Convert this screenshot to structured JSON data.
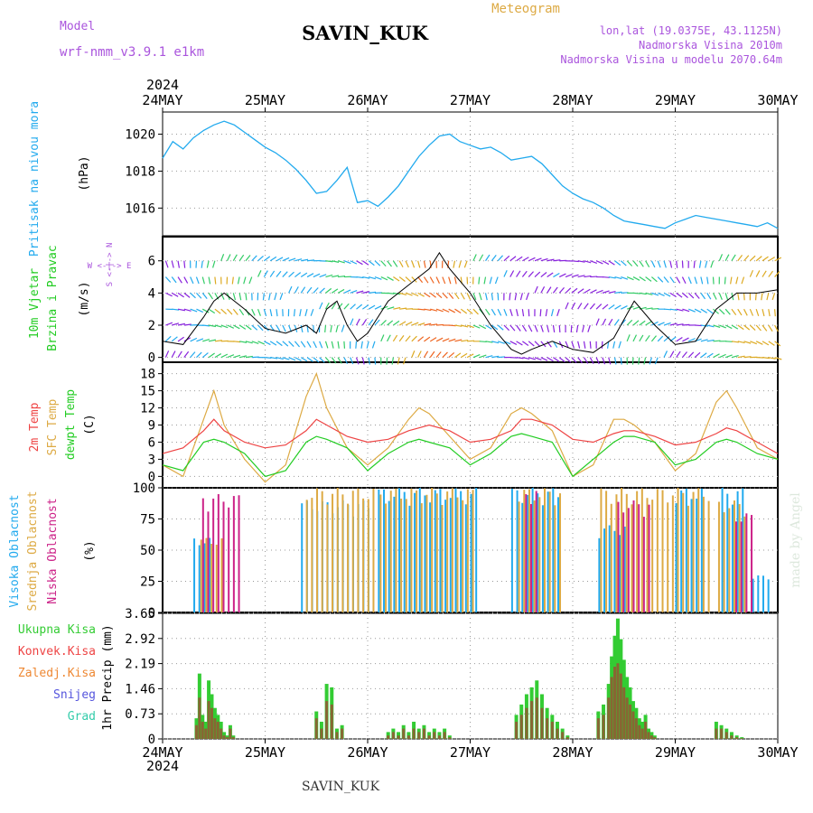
{
  "header": {
    "model_label": "Model",
    "model_name": "wrf-nmm_v3.9.1 e1km",
    "station": "SAVIN_KUK",
    "meteogram": "Meteogram",
    "lonlat": "lon,lat (19.0375E, 43.1125N)",
    "altitude": "Nadmorska Visina 2010m",
    "model_altitude": "Nadmorska Visina u modelu 2070.64m"
  },
  "footer": {
    "station": "SAVIN_KUK",
    "made_by": "made by Angel"
  },
  "time_axis": {
    "year": "2024",
    "days": [
      "24MAY",
      "25MAY",
      "26MAY",
      "27MAY",
      "28MAY",
      "29MAY",
      "30MAY"
    ]
  },
  "colors": {
    "pressure": "#22aaee",
    "temp2m": "#ee4444",
    "sfc": "#ddaa44",
    "dewpt": "#22cc22",
    "high_cloud": "#22aaee",
    "mid_cloud": "#ddaa44",
    "low_cloud": "#cc2288",
    "total_precip": "#33cc33",
    "conv_precip": "#ee4444",
    "frz_precip": "#ee8833",
    "snow": "#5555dd",
    "graupel": "#33ccaa",
    "wind_violet": "#8822dd"
  },
  "panels": {
    "pressure": {
      "label": "Pritisak na nivou mora",
      "unit": "(hPa)"
    },
    "wind": {
      "label1": "10m Vjetar",
      "label2": "Brzina i Pravac",
      "unit": "(m/s)",
      "compass": "W <-|-> E",
      "compass_v": "S <-|-> N"
    },
    "temp": {
      "label_2m": "2m Temp",
      "label_sfc": "SFC Temp",
      "label_dew": "dewpt Temp",
      "unit": "(C)"
    },
    "cloud": {
      "label_high": "Visoka Oblacnost",
      "label_mid": "Srednja Oblacnost",
      "label_low": "Niska Oblacnost",
      "unit": "(%)"
    },
    "precip": {
      "unit": "1hr Precip (mm)",
      "legend": [
        "Ukupna Kisa",
        "Konvek.Kisa",
        "Zaledj.Kisa",
        "Snijeg",
        "Grad"
      ]
    }
  },
  "chart_data": [
    {
      "type": "line",
      "name": "pressure",
      "ylim": [
        1014.5,
        1021.2
      ],
      "yticks": [
        "1016",
        "1018",
        "1020"
      ],
      "series": [
        {
          "name": "Pritisak na nivou mora",
          "x": [
            0,
            0.1,
            0.2,
            0.3,
            0.4,
            0.5,
            0.6,
            0.7,
            0.8,
            0.9,
            1.0,
            1.1,
            1.2,
            1.3,
            1.4,
            1.5,
            1.6,
            1.7,
            1.8,
            1.9,
            2.0,
            2.1,
            2.2,
            2.3,
            2.4,
            2.5,
            2.6,
            2.7,
            2.8,
            2.9,
            3.0,
            3.1,
            3.2,
            3.3,
            3.4,
            3.5,
            3.6,
            3.7,
            3.8,
            3.9,
            4.0,
            4.1,
            4.2,
            4.3,
            4.4,
            4.5,
            4.6,
            4.7,
            4.8,
            4.9,
            5.0,
            5.1,
            5.2,
            5.3,
            5.4,
            5.5,
            5.6,
            5.7,
            5.8,
            5.9,
            6.0
          ],
          "y": [
            1018.7,
            1019.6,
            1019.2,
            1019.8,
            1020.2,
            1020.5,
            1020.7,
            1020.5,
            1020.1,
            1019.7,
            1019.3,
            1019.0,
            1018.6,
            1018.1,
            1017.5,
            1016.8,
            1016.9,
            1017.5,
            1018.2,
            1016.3,
            1016.4,
            1016.1,
            1016.6,
            1017.2,
            1018.0,
            1018.8,
            1019.4,
            1019.9,
            1020.0,
            1019.6,
            1019.4,
            1019.2,
            1019.3,
            1019.0,
            1018.6,
            1018.7,
            1018.8,
            1018.4,
            1017.8,
            1017.2,
            1016.8,
            1016.5,
            1016.3,
            1016.0,
            1015.6,
            1015.3,
            1015.2,
            1015.1,
            1015.0,
            1014.9,
            1015.2,
            1015.4,
            1015.6,
            1015.5,
            1015.4,
            1015.3,
            1015.2,
            1015.1,
            1015.0,
            1015.2,
            1014.9
          ]
        }
      ]
    },
    {
      "type": "line",
      "name": "wind",
      "ylim": [
        -0.3,
        7.5
      ],
      "yticks": [
        "0",
        "2",
        "4",
        "6"
      ],
      "series": [
        {
          "name": "10m Vjetar",
          "x": [
            0,
            0.2,
            0.4,
            0.5,
            0.6,
            0.8,
            1.0,
            1.2,
            1.4,
            1.5,
            1.6,
            1.7,
            1.8,
            1.9,
            2.0,
            2.2,
            2.4,
            2.6,
            2.7,
            2.8,
            3.0,
            3.2,
            3.4,
            3.5,
            3.6,
            3.8,
            4.0,
            4.2,
            4.4,
            4.6,
            4.8,
            5.0,
            5.2,
            5.4,
            5.6,
            5.8,
            6.0
          ],
          "y": [
            1.0,
            0.8,
            2.5,
            3.5,
            4.0,
            3.0,
            1.8,
            1.5,
            2.0,
            1.5,
            3.0,
            3.5,
            2.0,
            1.0,
            1.5,
            3.5,
            4.5,
            5.5,
            6.5,
            5.5,
            4.0,
            2.0,
            0.5,
            0.2,
            0.5,
            1.0,
            0.5,
            0.3,
            1.2,
            3.5,
            2.0,
            0.8,
            1.0,
            3.0,
            4.0,
            4.0,
            4.2
          ]
        }
      ]
    },
    {
      "type": "line",
      "name": "temperature",
      "ylim": [
        -2,
        20
      ],
      "yticks": [
        "0",
        "3",
        "6",
        "9",
        "12",
        "15",
        "18"
      ],
      "series": [
        {
          "name": "2m Temp",
          "x": [
            0,
            0.2,
            0.4,
            0.5,
            0.6,
            0.8,
            1.0,
            1.2,
            1.4,
            1.5,
            1.6,
            1.8,
            2.0,
            2.2,
            2.4,
            2.5,
            2.6,
            2.8,
            3.0,
            3.2,
            3.4,
            3.5,
            3.6,
            3.8,
            4.0,
            4.2,
            4.4,
            4.5,
            4.6,
            4.8,
            5.0,
            5.2,
            5.4,
            5.5,
            5.6,
            5.8,
            6.0
          ],
          "y": [
            4.0,
            5.0,
            8.0,
            10.0,
            8.0,
            6.0,
            5.0,
            5.5,
            8.0,
            10.0,
            9.0,
            7.0,
            6.0,
            6.5,
            8.0,
            8.5,
            9.0,
            8.0,
            6.0,
            6.5,
            8.0,
            10.0,
            10.0,
            9.0,
            6.5,
            6.0,
            7.5,
            8.0,
            8.0,
            7.0,
            5.5,
            6.0,
            7.5,
            8.5,
            8.0,
            6.0,
            4.0
          ]
        },
        {
          "name": "SFC Temp",
          "x": [
            0,
            0.2,
            0.4,
            0.5,
            0.6,
            0.8,
            1.0,
            1.2,
            1.4,
            1.5,
            1.6,
            1.8,
            2.0,
            2.2,
            2.4,
            2.5,
            2.6,
            2.8,
            3.0,
            3.2,
            3.4,
            3.5,
            3.6,
            3.8,
            4.0,
            4.2,
            4.4,
            4.5,
            4.6,
            4.8,
            5.0,
            5.2,
            5.4,
            5.5,
            5.6,
            5.8,
            6.0
          ],
          "y": [
            2.0,
            0.0,
            10.0,
            15.0,
            9.0,
            3.0,
            -1.0,
            2.0,
            14.0,
            18.0,
            12.0,
            5.0,
            2.0,
            5.0,
            10.0,
            12.0,
            11.0,
            7.0,
            3.0,
            5.0,
            11.0,
            12.0,
            11.0,
            8.0,
            0.0,
            2.0,
            10.0,
            10.0,
            9.0,
            6.0,
            1.0,
            4.0,
            13.0,
            15.0,
            12.0,
            5.0,
            3.0
          ]
        },
        {
          "name": "dewpt Temp",
          "x": [
            0,
            0.2,
            0.4,
            0.5,
            0.6,
            0.8,
            1.0,
            1.2,
            1.4,
            1.5,
            1.6,
            1.8,
            2.0,
            2.2,
            2.4,
            2.5,
            2.6,
            2.8,
            3.0,
            3.2,
            3.4,
            3.5,
            3.6,
            3.8,
            4.0,
            4.2,
            4.4,
            4.5,
            4.6,
            4.8,
            5.0,
            5.2,
            5.4,
            5.5,
            5.6,
            5.8,
            6.0
          ],
          "y": [
            2.0,
            1.0,
            6.0,
            6.5,
            6.0,
            4.0,
            0.0,
            1.0,
            6.0,
            7.0,
            6.5,
            5.0,
            1.0,
            4.0,
            6.0,
            6.5,
            6.0,
            5.0,
            2.0,
            4.0,
            7.0,
            7.5,
            7.0,
            6.0,
            0.0,
            3.0,
            6.0,
            7.0,
            7.0,
            6.0,
            2.0,
            3.0,
            6.0,
            6.5,
            6.0,
            4.0,
            3.0
          ]
        }
      ]
    },
    {
      "type": "bar",
      "name": "cloud",
      "ylim": [
        0,
        100
      ],
      "yticks": [
        "0",
        "25",
        "50",
        "75",
        "100"
      ],
      "series": [
        {
          "name": "Visoka Oblacnost",
          "intervals": [
            [
              0.3,
              0.45
            ],
            [
              1.35,
              2.05
            ],
            [
              2.1,
              3.05
            ],
            [
              3.4,
              3.85
            ],
            [
              4.25,
              4.5
            ],
            [
              5.0,
              5.25
            ],
            [
              5.45,
              5.65
            ],
            [
              5.75,
              5.9
            ]
          ],
          "values": [
            60,
            90,
            100,
            100,
            70,
            100,
            100,
            30
          ]
        },
        {
          "name": "Srednja Oblacnost",
          "intervals": [
            [
              0.35,
              0.6
            ],
            [
              1.38,
              2.05
            ],
            [
              2.1,
              3.05
            ],
            [
              3.45,
              3.9
            ],
            [
              4.25,
              5.0
            ],
            [
              5.0,
              5.35
            ],
            [
              5.4,
              5.7
            ]
          ],
          "values": [
            60,
            100,
            100,
            100,
            100,
            100,
            90
          ]
        },
        {
          "name": "Niska Oblacnost",
          "intervals": [
            [
              0.35,
              0.75
            ],
            [
              3.5,
              3.65
            ],
            [
              4.4,
              4.75
            ],
            [
              5.55,
              5.75
            ]
          ],
          "values": [
            95,
            100,
            90,
            80
          ]
        }
      ]
    },
    {
      "type": "bar",
      "name": "precipitation",
      "ylim": [
        0,
        3.65
      ],
      "yticks": [
        "0",
        "0.73",
        "1.46",
        "2.19",
        "2.92",
        "3.65"
      ],
      "series": [
        {
          "name": "Ukupna Kisa",
          "x": [
            0.33,
            0.36,
            0.39,
            0.42,
            0.45,
            0.48,
            0.51,
            0.54,
            0.57,
            0.6,
            0.63,
            0.66,
            0.69,
            1.5,
            1.55,
            1.6,
            1.65,
            1.7,
            1.75,
            2.2,
            2.25,
            2.3,
            2.35,
            2.4,
            2.45,
            2.5,
            2.55,
            2.6,
            2.65,
            2.7,
            2.75,
            2.8,
            3.45,
            3.5,
            3.55,
            3.6,
            3.65,
            3.7,
            3.75,
            3.8,
            3.85,
            3.9,
            3.95,
            4.25,
            4.3,
            4.35,
            4.38,
            4.41,
            4.44,
            4.47,
            4.5,
            4.53,
            4.56,
            4.59,
            4.62,
            4.65,
            4.68,
            4.71,
            4.74,
            4.77,
            4.8,
            5.4,
            5.45,
            5.5,
            5.55,
            5.6,
            5.65
          ],
          "values": [
            0.6,
            1.9,
            0.7,
            0.5,
            1.7,
            1.3,
            0.9,
            0.7,
            0.5,
            0.2,
            0.1,
            0.4,
            0.1,
            0.8,
            0.5,
            1.6,
            1.5,
            0.3,
            0.4,
            0.2,
            0.3,
            0.2,
            0.4,
            0.2,
            0.5,
            0.3,
            0.4,
            0.2,
            0.3,
            0.2,
            0.3,
            0.1,
            0.7,
            1.0,
            1.3,
            1.5,
            1.7,
            1.3,
            0.9,
            0.7,
            0.5,
            0.3,
            0.1,
            0.8,
            1.0,
            1.6,
            2.4,
            3.0,
            3.5,
            2.9,
            2.3,
            1.8,
            1.5,
            1.1,
            0.9,
            0.6,
            0.5,
            0.7,
            0.3,
            0.2,
            0.1,
            0.5,
            0.4,
            0.3,
            0.2,
            0.1,
            0.05
          ]
        },
        {
          "name": "Konvek.Kisa",
          "x": [
            0.33,
            0.36,
            0.39,
            0.42,
            0.45,
            0.48,
            0.51,
            0.54,
            0.57,
            0.6,
            0.63,
            0.66,
            0.69,
            1.5,
            1.55,
            1.6,
            1.65,
            1.7,
            1.75,
            2.2,
            2.25,
            2.3,
            2.35,
            2.4,
            2.45,
            2.5,
            2.55,
            2.6,
            2.65,
            2.7,
            2.75,
            2.8,
            3.45,
            3.5,
            3.55,
            3.6,
            3.65,
            3.7,
            3.75,
            3.8,
            3.85,
            3.9,
            3.95,
            4.25,
            4.3,
            4.35,
            4.38,
            4.41,
            4.44,
            4.47,
            4.5,
            4.53,
            4.56,
            4.59,
            4.62,
            4.65,
            4.68,
            4.71,
            4.74,
            4.77,
            4.8,
            5.4,
            5.45,
            5.5,
            5.55,
            5.6,
            5.65
          ],
          "values": [
            0.4,
            1.2,
            0.5,
            0.3,
            1.1,
            0.9,
            0.6,
            0.5,
            0.3,
            0.1,
            0.05,
            0.3,
            0.05,
            0.6,
            0.3,
            1.1,
            1.0,
            0.2,
            0.3,
            0.1,
            0.2,
            0.1,
            0.3,
            0.1,
            0.3,
            0.2,
            0.3,
            0.1,
            0.2,
            0.1,
            0.2,
            0.05,
            0.5,
            0.7,
            0.9,
            1.1,
            1.2,
            0.9,
            0.6,
            0.5,
            0.3,
            0.2,
            0.05,
            0.6,
            0.7,
            1.2,
            1.8,
            2.1,
            2.2,
            1.9,
            1.5,
            1.2,
            1.0,
            0.8,
            0.6,
            0.4,
            0.3,
            0.5,
            0.2,
            0.1,
            0.05,
            0.3,
            0.3,
            0.2,
            0.1,
            0.05,
            0.02
          ]
        }
      ]
    }
  ]
}
